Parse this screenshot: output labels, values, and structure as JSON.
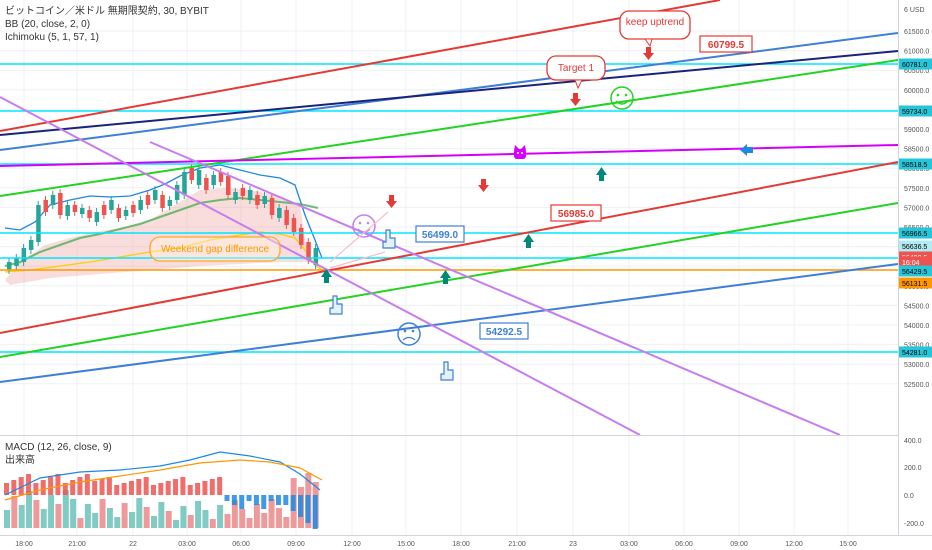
{
  "legend": {
    "title": "ビットコイン／米ドル 無期限契約, 30, BYBIT",
    "bb": "BB (20, close, 2, 0)",
    "ichimoku": "Ichimoku (5, 1, 57, 1)"
  },
  "macd_legend": {
    "macd": "MACD (12, 26, close, 9)",
    "volume": "出来高"
  },
  "currency": "USD",
  "annotations": {
    "keep_uptrend": "keep uptrend",
    "target_1": "Target 1",
    "weekend_gap": "Weekend gap difference"
  },
  "level_labels": {
    "l60799": "60799.5",
    "l56985": "56985.0",
    "l56499": "56499.0",
    "l54292": "54292.5"
  },
  "price_ticks": [
    "61500.0",
    "61000.0",
    "60500.0",
    "60000.0",
    "59500.0",
    "59000.0",
    "58500.0",
    "58000.0",
    "57500.0",
    "57000.0",
    "56500.0",
    "56000.0",
    "55500.0",
    "55000.0",
    "54500.0",
    "54000.0",
    "53500.0",
    "53000.0",
    "52500.0"
  ],
  "price_top": "6 USD",
  "price_badges": [
    {
      "text": "60781.0",
      "bg": "#26c6da",
      "fg": "#000000"
    },
    {
      "text": "59734.0",
      "bg": "#26c6da",
      "fg": "#000000"
    },
    {
      "text": "58518.5",
      "bg": "#26c6da",
      "fg": "#000000"
    },
    {
      "text": "56966.5",
      "bg": "#26c6da",
      "fg": "#000000"
    },
    {
      "text": "56636.5",
      "bg": "#b2ebf2",
      "fg": "#000000"
    },
    {
      "text": "56400.5",
      "bg": "#ef5350",
      "fg": "#ffffff"
    },
    {
      "text": "16:04",
      "bg": "#ef5350",
      "fg": "#ffffff"
    },
    {
      "text": "56429.5",
      "bg": "#26c6da",
      "fg": "#000000"
    },
    {
      "text": "56131.5",
      "bg": "#ff9800",
      "fg": "#000000"
    },
    {
      "text": "54281.0",
      "bg": "#26c6da",
      "fg": "#000000"
    }
  ],
  "macd_ticks": [
    "400.0",
    "200.0",
    "0.0",
    "-200.0"
  ],
  "time_ticks": [
    "18:00",
    "21:00",
    "22",
    "03:00",
    "06:00",
    "09:00",
    "12:00",
    "15:00",
    "18:00",
    "21:00",
    "23",
    "03:00",
    "06:00",
    "09:00",
    "12:00",
    "15:00"
  ],
  "colors": {
    "up": "#26a69a",
    "down": "#ef5350",
    "cyan_level": "#00e5ff",
    "red_trend": "#e53935",
    "blue_trend": "#1a237e",
    "steel_trend": "#3f7fd6",
    "green_trend": "#22d322",
    "violet_trend": "#c77df0",
    "magenta_trend": "#d500f9"
  }
}
